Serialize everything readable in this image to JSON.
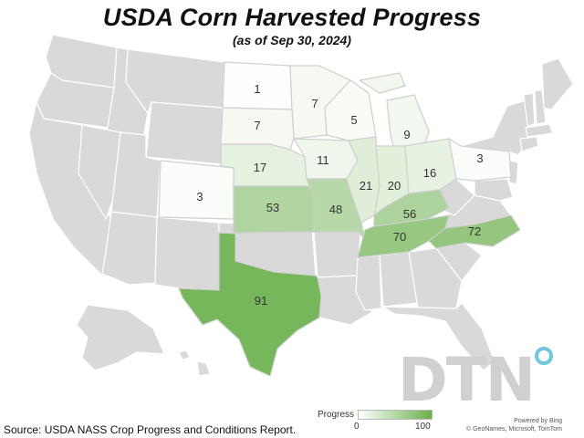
{
  "title": "USDA Corn Harvested Progress",
  "subtitle": "(as of Sep 30, 2024)",
  "colors": {
    "min": "#ffffff",
    "max": "#6ab04c",
    "no_data": "#d9d9d9",
    "border": "#ffffff"
  },
  "legend": {
    "title": "Progress",
    "min_label": "0",
    "max_label": "100",
    "min": 0,
    "max": 100
  },
  "source": "Source: USDA NASS Crop Progress and Conditions Report.",
  "attribution": {
    "line1": "Powered by Bing",
    "line2": "© GeoNames, Microsoft, TomTom"
  },
  "logo": {
    "text": "DTN",
    "icon": "dtn-ring-logo"
  },
  "states": [
    {
      "code": "ND",
      "progress": 1
    },
    {
      "code": "MN",
      "progress": 7
    },
    {
      "code": "SD",
      "progress": 7
    },
    {
      "code": "WI",
      "progress": 5
    },
    {
      "code": "MI",
      "progress": 9
    },
    {
      "code": "NE",
      "progress": 17
    },
    {
      "code": "IA",
      "progress": 11
    },
    {
      "code": "IL",
      "progress": 21
    },
    {
      "code": "IN",
      "progress": 20
    },
    {
      "code": "OH",
      "progress": 16
    },
    {
      "code": "PA",
      "progress": 3
    },
    {
      "code": "CO",
      "progress": 3
    },
    {
      "code": "KS",
      "progress": 53
    },
    {
      "code": "MO",
      "progress": 48
    },
    {
      "code": "KY",
      "progress": 56
    },
    {
      "code": "TN",
      "progress": 70
    },
    {
      "code": "NC",
      "progress": 72
    },
    {
      "code": "TX",
      "progress": 91
    }
  ]
}
